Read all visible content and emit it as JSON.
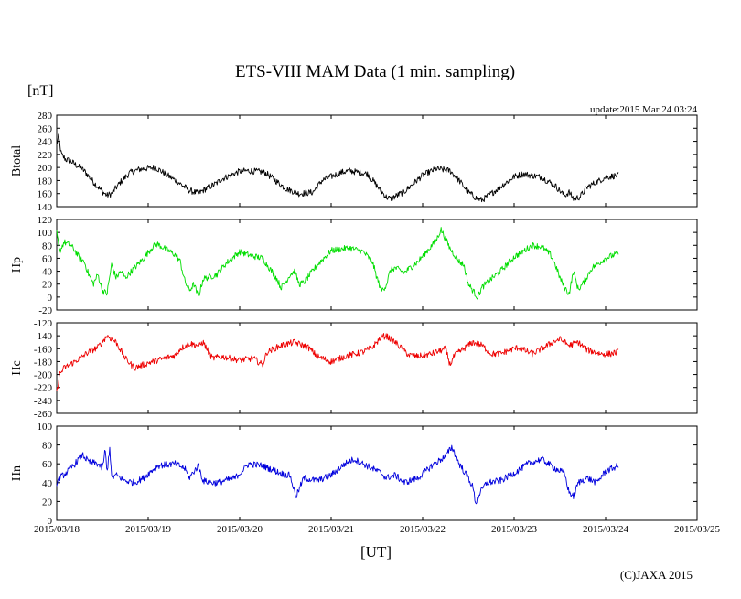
{
  "chart_data": {
    "type": "line",
    "title": "ETS-VIII MAM Data (1 min. sampling)",
    "y_unit": "[nT]",
    "update_text": "update:2015 Mar 24 03:24",
    "xlabel": "[UT]",
    "copyright": "(C)JAXA 2015",
    "x_ticks": [
      "2015/03/18",
      "2015/03/19",
      "2015/03/20",
      "2015/03/21",
      "2015/03/22",
      "2015/03/23",
      "2015/03/24",
      "2015/03/25"
    ],
    "x_range_days": [
      0,
      7
    ],
    "data_end_day": 6.14,
    "panels": [
      {
        "name": "Btotal",
        "color": "#000000",
        "ylim": [
          140,
          280
        ],
        "yticks": [
          280,
          260,
          240,
          220,
          200,
          180,
          160,
          140
        ],
        "series": [
          [
            0.0,
            235
          ],
          [
            0.02,
            248
          ],
          [
            0.05,
            220
          ],
          [
            0.1,
            212
          ],
          [
            0.15,
            210
          ],
          [
            0.2,
            205
          ],
          [
            0.3,
            195
          ],
          [
            0.4,
            178
          ],
          [
            0.5,
            163
          ],
          [
            0.55,
            157
          ],
          [
            0.6,
            160
          ],
          [
            0.7,
            178
          ],
          [
            0.8,
            192
          ],
          [
            0.9,
            197
          ],
          [
            1.0,
            199
          ],
          [
            1.08,
            200
          ],
          [
            1.3,
            180
          ],
          [
            1.45,
            165
          ],
          [
            1.55,
            160
          ],
          [
            1.6,
            165
          ],
          [
            1.75,
            176
          ],
          [
            1.8,
            182
          ],
          [
            2.0,
            194
          ],
          [
            2.1,
            195
          ],
          [
            2.25,
            193
          ],
          [
            2.3,
            190
          ],
          [
            2.5,
            168
          ],
          [
            2.65,
            160
          ],
          [
            2.8,
            162
          ],
          [
            2.9,
            180
          ],
          [
            3.1,
            192
          ],
          [
            3.2,
            195
          ],
          [
            3.4,
            190
          ],
          [
            3.5,
            172
          ],
          [
            3.6,
            155
          ],
          [
            3.65,
            152
          ],
          [
            3.8,
            163
          ],
          [
            4.0,
            188
          ],
          [
            4.15,
            198
          ],
          [
            4.3,
            195
          ],
          [
            4.4,
            180
          ],
          [
            4.5,
            162
          ],
          [
            4.6,
            152
          ],
          [
            4.65,
            150
          ],
          [
            4.8,
            165
          ],
          [
            5.0,
            186
          ],
          [
            5.1,
            190
          ],
          [
            5.3,
            185
          ],
          [
            5.45,
            172
          ],
          [
            5.55,
            157
          ],
          [
            5.6,
            162
          ],
          [
            5.65,
            152
          ],
          [
            5.72,
            155
          ],
          [
            5.8,
            170
          ],
          [
            6.0,
            185
          ],
          [
            6.14,
            188
          ]
        ]
      },
      {
        "name": "Hp",
        "color": "#00dd00",
        "ylim": [
          -20,
          120
        ],
        "yticks": [
          120,
          100,
          80,
          60,
          40,
          20,
          0,
          -20
        ],
        "series": [
          [
            0.0,
            100
          ],
          [
            0.03,
            70
          ],
          [
            0.08,
            85
          ],
          [
            0.15,
            80
          ],
          [
            0.2,
            72
          ],
          [
            0.25,
            60
          ],
          [
            0.3,
            55
          ],
          [
            0.35,
            35
          ],
          [
            0.4,
            20
          ],
          [
            0.45,
            35
          ],
          [
            0.5,
            10
          ],
          [
            0.55,
            5
          ],
          [
            0.6,
            50
          ],
          [
            0.65,
            30
          ],
          [
            0.7,
            40
          ],
          [
            0.75,
            30
          ],
          [
            0.85,
            45
          ],
          [
            0.95,
            60
          ],
          [
            1.05,
            78
          ],
          [
            1.1,
            82
          ],
          [
            1.3,
            65
          ],
          [
            1.35,
            55
          ],
          [
            1.4,
            25
          ],
          [
            1.45,
            10
          ],
          [
            1.5,
            20
          ],
          [
            1.55,
            0
          ],
          [
            1.6,
            28
          ],
          [
            1.75,
            35
          ],
          [
            1.85,
            52
          ],
          [
            2.0,
            70
          ],
          [
            2.1,
            65
          ],
          [
            2.25,
            60
          ],
          [
            2.3,
            50
          ],
          [
            2.4,
            30
          ],
          [
            2.45,
            15
          ],
          [
            2.5,
            22
          ],
          [
            2.55,
            35
          ],
          [
            2.6,
            40
          ],
          [
            2.65,
            20
          ],
          [
            2.7,
            22
          ],
          [
            2.85,
            50
          ],
          [
            3.0,
            72
          ],
          [
            3.2,
            76
          ],
          [
            3.35,
            70
          ],
          [
            3.45,
            55
          ],
          [
            3.5,
            30
          ],
          [
            3.55,
            10
          ],
          [
            3.6,
            18
          ],
          [
            3.65,
            42
          ],
          [
            3.7,
            45
          ],
          [
            3.8,
            38
          ],
          [
            3.95,
            55
          ],
          [
            4.15,
            88
          ],
          [
            4.2,
            105
          ],
          [
            4.3,
            75
          ],
          [
            4.4,
            55
          ],
          [
            4.45,
            50
          ],
          [
            4.5,
            20
          ],
          [
            4.55,
            10
          ],
          [
            4.6,
            0
          ],
          [
            4.65,
            15
          ],
          [
            4.75,
            28
          ],
          [
            4.85,
            40
          ],
          [
            5.0,
            62
          ],
          [
            5.2,
            80
          ],
          [
            5.3,
            78
          ],
          [
            5.4,
            65
          ],
          [
            5.45,
            50
          ],
          [
            5.5,
            30
          ],
          [
            5.55,
            15
          ],
          [
            5.6,
            5
          ],
          [
            5.65,
            40
          ],
          [
            5.7,
            12
          ],
          [
            5.75,
            20
          ],
          [
            5.85,
            45
          ],
          [
            6.0,
            60
          ],
          [
            6.14,
            68
          ]
        ]
      },
      {
        "name": "Hc",
        "color": "#ee0000",
        "ylim": [
          -260,
          -120
        ],
        "yticks": [
          -120,
          -140,
          -160,
          -180,
          -200,
          -220,
          -240,
          -260
        ],
        "series": [
          [
            0.0,
            -230
          ],
          [
            0.03,
            -200
          ],
          [
            0.08,
            -190
          ],
          [
            0.2,
            -180
          ],
          [
            0.35,
            -165
          ],
          [
            0.45,
            -158
          ],
          [
            0.55,
            -140
          ],
          [
            0.65,
            -150
          ],
          [
            0.75,
            -175
          ],
          [
            0.85,
            -190
          ],
          [
            1.0,
            -182
          ],
          [
            1.1,
            -178
          ],
          [
            1.3,
            -170
          ],
          [
            1.35,
            -160
          ],
          [
            1.45,
            -152
          ],
          [
            1.55,
            -155
          ],
          [
            1.6,
            -150
          ],
          [
            1.7,
            -175
          ],
          [
            1.8,
            -172
          ],
          [
            2.0,
            -178
          ],
          [
            2.15,
            -175
          ],
          [
            2.25,
            -185
          ],
          [
            2.3,
            -165
          ],
          [
            2.45,
            -155
          ],
          [
            2.6,
            -150
          ],
          [
            2.75,
            -158
          ],
          [
            2.85,
            -172
          ],
          [
            3.0,
            -180
          ],
          [
            3.15,
            -172
          ],
          [
            3.35,
            -165
          ],
          [
            3.45,
            -158
          ],
          [
            3.55,
            -142
          ],
          [
            3.6,
            -140
          ],
          [
            3.7,
            -150
          ],
          [
            3.85,
            -170
          ],
          [
            3.95,
            -172
          ],
          [
            4.1,
            -168
          ],
          [
            4.25,
            -160
          ],
          [
            4.3,
            -185
          ],
          [
            4.35,
            -170
          ],
          [
            4.45,
            -160
          ],
          [
            4.55,
            -150
          ],
          [
            4.65,
            -155
          ],
          [
            4.75,
            -168
          ],
          [
            4.85,
            -168
          ],
          [
            4.95,
            -162
          ],
          [
            5.05,
            -158
          ],
          [
            5.15,
            -165
          ],
          [
            5.2,
            -168
          ],
          [
            5.3,
            -160
          ],
          [
            5.45,
            -148
          ],
          [
            5.5,
            -145
          ],
          [
            5.6,
            -155
          ],
          [
            5.7,
            -150
          ],
          [
            5.8,
            -162
          ],
          [
            5.95,
            -168
          ],
          [
            6.05,
            -168
          ],
          [
            6.14,
            -165
          ]
        ]
      },
      {
        "name": "Hn",
        "color": "#0000dd",
        "ylim": [
          0,
          100
        ],
        "yticks": [
          100,
          80,
          60,
          40,
          20,
          0
        ],
        "series": [
          [
            0.0,
            40
          ],
          [
            0.03,
            45
          ],
          [
            0.1,
            50
          ],
          [
            0.2,
            60
          ],
          [
            0.28,
            70
          ],
          [
            0.35,
            62
          ],
          [
            0.45,
            60
          ],
          [
            0.5,
            55
          ],
          [
            0.53,
            75
          ],
          [
            0.55,
            50
          ],
          [
            0.58,
            78
          ],
          [
            0.6,
            45
          ],
          [
            0.65,
            48
          ],
          [
            0.75,
            42
          ],
          [
            0.85,
            40
          ],
          [
            0.95,
            45
          ],
          [
            1.1,
            58
          ],
          [
            1.3,
            60
          ],
          [
            1.4,
            55
          ],
          [
            1.45,
            45
          ],
          [
            1.5,
            52
          ],
          [
            1.55,
            58
          ],
          [
            1.6,
            42
          ],
          [
            1.7,
            40
          ],
          [
            1.75,
            40
          ],
          [
            1.95,
            45
          ],
          [
            2.1,
            60
          ],
          [
            2.25,
            58
          ],
          [
            2.4,
            52
          ],
          [
            2.5,
            48
          ],
          [
            2.55,
            48
          ],
          [
            2.6,
            30
          ],
          [
            2.62,
            26
          ],
          [
            2.7,
            45
          ],
          [
            2.85,
            42
          ],
          [
            3.0,
            48
          ],
          [
            3.15,
            60
          ],
          [
            3.25,
            65
          ],
          [
            3.35,
            60
          ],
          [
            3.45,
            55
          ],
          [
            3.55,
            50
          ],
          [
            3.6,
            45
          ],
          [
            3.7,
            48
          ],
          [
            3.8,
            40
          ],
          [
            3.95,
            45
          ],
          [
            4.1,
            58
          ],
          [
            4.25,
            68
          ],
          [
            4.32,
            78
          ],
          [
            4.4,
            60
          ],
          [
            4.5,
            45
          ],
          [
            4.55,
            35
          ],
          [
            4.58,
            18
          ],
          [
            4.62,
            28
          ],
          [
            4.7,
            40
          ],
          [
            4.85,
            42
          ],
          [
            5.0,
            50
          ],
          [
            5.15,
            60
          ],
          [
            5.3,
            65
          ],
          [
            5.45,
            55
          ],
          [
            5.55,
            50
          ],
          [
            5.6,
            30
          ],
          [
            5.65,
            25
          ],
          [
            5.7,
            40
          ],
          [
            5.8,
            45
          ],
          [
            5.9,
            40
          ],
          [
            6.0,
            52
          ],
          [
            6.14,
            58
          ]
        ]
      }
    ]
  }
}
